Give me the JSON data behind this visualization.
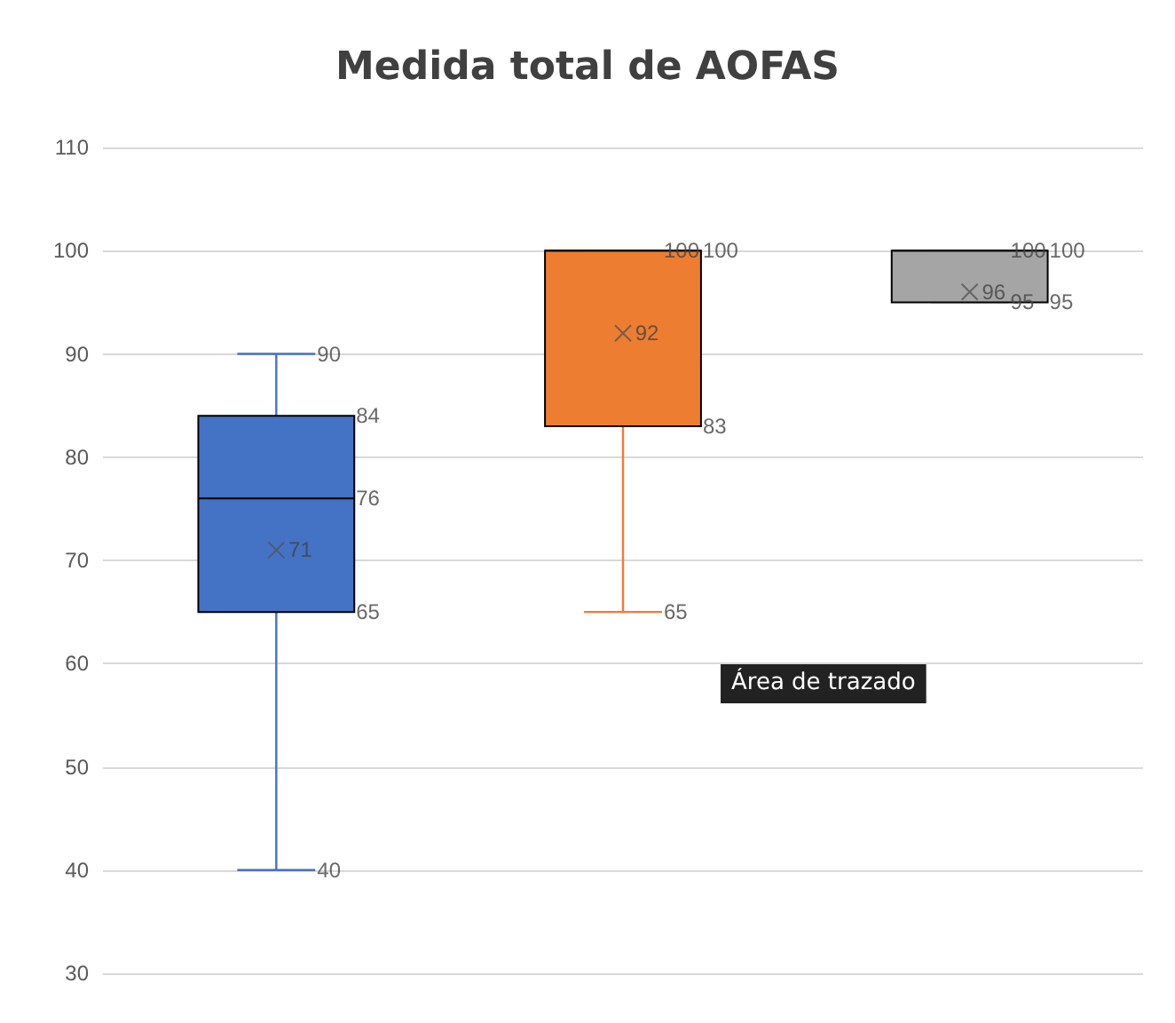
{
  "chart_data": {
    "type": "box",
    "title": "Medida total de AOFAS",
    "categories": [
      null,
      null,
      null
    ],
    "colors": [
      "#4472c4",
      "#ed7d31",
      "#a5a5a5"
    ],
    "boxes": [
      {
        "low": 40,
        "q1": 65,
        "median": 76,
        "q3": 84,
        "high": 90,
        "mean": 71
      },
      {
        "low": 65,
        "q1": 83,
        "median": 100,
        "q3": 100,
        "high": 100,
        "mean": 92
      },
      {
        "low": 95,
        "q1": 95,
        "median": 100,
        "q3": 100,
        "high": 100,
        "mean": 96
      }
    ],
    "ylim": [
      30,
      110
    ],
    "yticks": [
      30,
      40,
      50,
      60,
      70,
      80,
      90,
      100,
      110
    ],
    "grid": "y",
    "marker": "cross",
    "annotations": [
      "90",
      "84",
      "76",
      "65",
      "40",
      "71",
      "100",
      "100",
      "83",
      "65",
      "92",
      "100",
      "100",
      "95",
      "95",
      "96",
      "Área de trazado"
    ]
  }
}
